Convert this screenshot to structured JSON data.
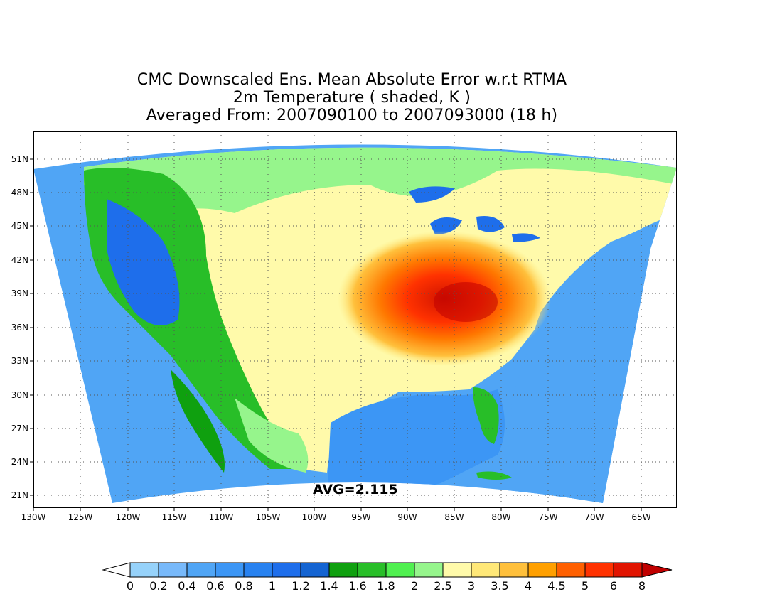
{
  "title": {
    "line1": "CMC Downscaled Ens. Mean Absolute Error w.r.t RTMA",
    "line2": "2m Temperature ( shaded, K )",
    "line3": "Averaged From: 2007090100 to 2007093000 (18 h)"
  },
  "map": {
    "projection": "conic",
    "lon_labels": [
      "130W",
      "125W",
      "120W",
      "115W",
      "110W",
      "105W",
      "100W",
      "95W",
      "90W",
      "85W",
      "80W",
      "75W",
      "70W",
      "65W"
    ],
    "lat_labels": [
      "51N",
      "48N",
      "45N",
      "42N",
      "39N",
      "36N",
      "33N",
      "30N",
      "27N",
      "24N",
      "21N"
    ],
    "grid": true,
    "avg_label": "AVG=2.115"
  },
  "colorbar": {
    "labels": [
      "0",
      "0.2",
      "0.4",
      "0.6",
      "0.8",
      "1",
      "1.2",
      "1.4",
      "1.6",
      "1.8",
      "2",
      "2.5",
      "3",
      "3.5",
      "4",
      "4.5",
      "5",
      "6",
      "8"
    ],
    "colors": [
      "#ffffff",
      "#96d2fa",
      "#78b9fa",
      "#50a5f5",
      "#3c96f5",
      "#2882f0",
      "#1e6eeb",
      "#1464d2",
      "#0fa00f",
      "#28be28",
      "#50f050",
      "#96f58c",
      "#fffaaa",
      "#ffe878",
      "#ffc03c",
      "#ffa000",
      "#ff6000",
      "#ff3200",
      "#e11400",
      "#c00000"
    ]
  }
}
